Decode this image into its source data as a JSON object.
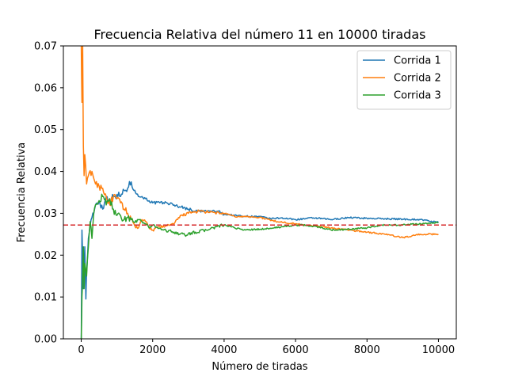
{
  "chart_data": {
    "type": "line",
    "title": "Frecuencia Relativa del número 11 en 10000 tiradas",
    "xlabel": "Número de tiradas",
    "ylabel": "Frecuencia Relativa",
    "xlim": [
      -500,
      10500
    ],
    "ylim": [
      0,
      0.07
    ],
    "x_ticks": [
      0,
      2000,
      4000,
      6000,
      8000,
      10000
    ],
    "x_tick_labels": [
      "0",
      "2000",
      "4000",
      "6000",
      "8000",
      "10000"
    ],
    "y_ticks": [
      0,
      0.01,
      0.02,
      0.03,
      0.04,
      0.05,
      0.06,
      0.07
    ],
    "y_tick_labels": [
      "0.00",
      "0.01",
      "0.02",
      "0.03",
      "0.04",
      "0.05",
      "0.06",
      "0.07"
    ],
    "grid": false,
    "legend_position": "top-right",
    "reference_line": {
      "y": 0.0272,
      "color": "#d62728",
      "style": "dashed"
    },
    "series": [
      {
        "name": "Corrida 1",
        "color": "#1f77b4",
        "points": [
          [
            1,
            0
          ],
          [
            20,
            0.026
          ],
          [
            60,
            0.012
          ],
          [
            100,
            0.022
          ],
          [
            130,
            0.0095
          ],
          [
            150,
            0.016
          ],
          [
            200,
            0.024
          ],
          [
            300,
            0.029
          ],
          [
            400,
            0.032
          ],
          [
            500,
            0.033
          ],
          [
            600,
            0.031
          ],
          [
            700,
            0.034
          ],
          [
            800,
            0.033
          ],
          [
            900,
            0.034
          ],
          [
            1000,
            0.0345
          ],
          [
            1100,
            0.034
          ],
          [
            1200,
            0.0355
          ],
          [
            1300,
            0.036
          ],
          [
            1400,
            0.0375
          ],
          [
            1500,
            0.0355
          ],
          [
            1600,
            0.034
          ],
          [
            1700,
            0.034
          ],
          [
            1800,
            0.0335
          ],
          [
            1900,
            0.033
          ],
          [
            2000,
            0.0325
          ],
          [
            2200,
            0.0325
          ],
          [
            2400,
            0.0325
          ],
          [
            2600,
            0.032
          ],
          [
            2800,
            0.0315
          ],
          [
            3000,
            0.031
          ],
          [
            3200,
            0.0305
          ],
          [
            3500,
            0.0305
          ],
          [
            3800,
            0.0305
          ],
          [
            4000,
            0.0298
          ],
          [
            4300,
            0.0295
          ],
          [
            4600,
            0.0293
          ],
          [
            5000,
            0.0292
          ],
          [
            5300,
            0.0287
          ],
          [
            5600,
            0.0289
          ],
          [
            6000,
            0.0285
          ],
          [
            6500,
            0.0289
          ],
          [
            7000,
            0.0285
          ],
          [
            7500,
            0.029
          ],
          [
            8000,
            0.0288
          ],
          [
            8500,
            0.0287
          ],
          [
            9000,
            0.0286
          ],
          [
            9500,
            0.0285
          ],
          [
            10000,
            0.0278
          ]
        ]
      },
      {
        "name": "Corrida 2",
        "color": "#ff7f0e",
        "points": [
          [
            1,
            0.07
          ],
          [
            20,
            0.0565
          ],
          [
            40,
            0.07
          ],
          [
            60,
            0.046
          ],
          [
            80,
            0.039
          ],
          [
            100,
            0.044
          ],
          [
            150,
            0.037
          ],
          [
            200,
            0.039
          ],
          [
            300,
            0.04
          ],
          [
            400,
            0.037
          ],
          [
            500,
            0.0365
          ],
          [
            600,
            0.036
          ],
          [
            700,
            0.034
          ],
          [
            800,
            0.032
          ],
          [
            900,
            0.034
          ],
          [
            1000,
            0.0335
          ],
          [
            1100,
            0.0325
          ],
          [
            1200,
            0.031
          ],
          [
            1300,
            0.03
          ],
          [
            1400,
            0.0285
          ],
          [
            1500,
            0.027
          ],
          [
            1600,
            0.0265
          ],
          [
            1700,
            0.0285
          ],
          [
            1800,
            0.028
          ],
          [
            1900,
            0.0265
          ],
          [
            2000,
            0.026
          ],
          [
            2200,
            0.0268
          ],
          [
            2400,
            0.027
          ],
          [
            2600,
            0.0275
          ],
          [
            2800,
            0.0295
          ],
          [
            3000,
            0.03
          ],
          [
            3300,
            0.0305
          ],
          [
            3600,
            0.0302
          ],
          [
            4000,
            0.03
          ],
          [
            4300,
            0.0292
          ],
          [
            4600,
            0.0292
          ],
          [
            5000,
            0.029
          ],
          [
            5500,
            0.028
          ],
          [
            6000,
            0.0275
          ],
          [
            6500,
            0.027
          ],
          [
            7000,
            0.0265
          ],
          [
            7500,
            0.026
          ],
          [
            8000,
            0.0255
          ],
          [
            8500,
            0.025
          ],
          [
            9000,
            0.0242
          ],
          [
            9500,
            0.025
          ],
          [
            10000,
            0.025
          ]
        ]
      },
      {
        "name": "Corrida 3",
        "color": "#2ca02c",
        "points": [
          [
            1,
            0
          ],
          [
            20,
            0.01
          ],
          [
            40,
            0.015
          ],
          [
            60,
            0.022
          ],
          [
            80,
            0.012
          ],
          [
            100,
            0.018
          ],
          [
            150,
            0.015
          ],
          [
            200,
            0.022
          ],
          [
            250,
            0.028
          ],
          [
            300,
            0.024
          ],
          [
            350,
            0.03
          ],
          [
            400,
            0.032
          ],
          [
            500,
            0.033
          ],
          [
            600,
            0.034
          ],
          [
            700,
            0.032
          ],
          [
            800,
            0.0335
          ],
          [
            900,
            0.031
          ],
          [
            1000,
            0.0295
          ],
          [
            1100,
            0.0295
          ],
          [
            1200,
            0.0285
          ],
          [
            1300,
            0.029
          ],
          [
            1400,
            0.0285
          ],
          [
            1500,
            0.0278
          ],
          [
            1600,
            0.0285
          ],
          [
            1700,
            0.028
          ],
          [
            1800,
            0.0275
          ],
          [
            1900,
            0.0265
          ],
          [
            2000,
            0.0272
          ],
          [
            2300,
            0.026
          ],
          [
            2600,
            0.0255
          ],
          [
            2900,
            0.0248
          ],
          [
            3200,
            0.0255
          ],
          [
            3500,
            0.026
          ],
          [
            3800,
            0.0268
          ],
          [
            4000,
            0.0272
          ],
          [
            4300,
            0.0265
          ],
          [
            4600,
            0.026
          ],
          [
            5000,
            0.0262
          ],
          [
            5400,
            0.0265
          ],
          [
            5800,
            0.027
          ],
          [
            6200,
            0.0272
          ],
          [
            6600,
            0.0268
          ],
          [
            7000,
            0.026
          ],
          [
            7500,
            0.0262
          ],
          [
            8000,
            0.0265
          ],
          [
            8500,
            0.0272
          ],
          [
            9000,
            0.0272
          ],
          [
            9500,
            0.0275
          ],
          [
            10000,
            0.0278
          ]
        ]
      }
    ]
  }
}
